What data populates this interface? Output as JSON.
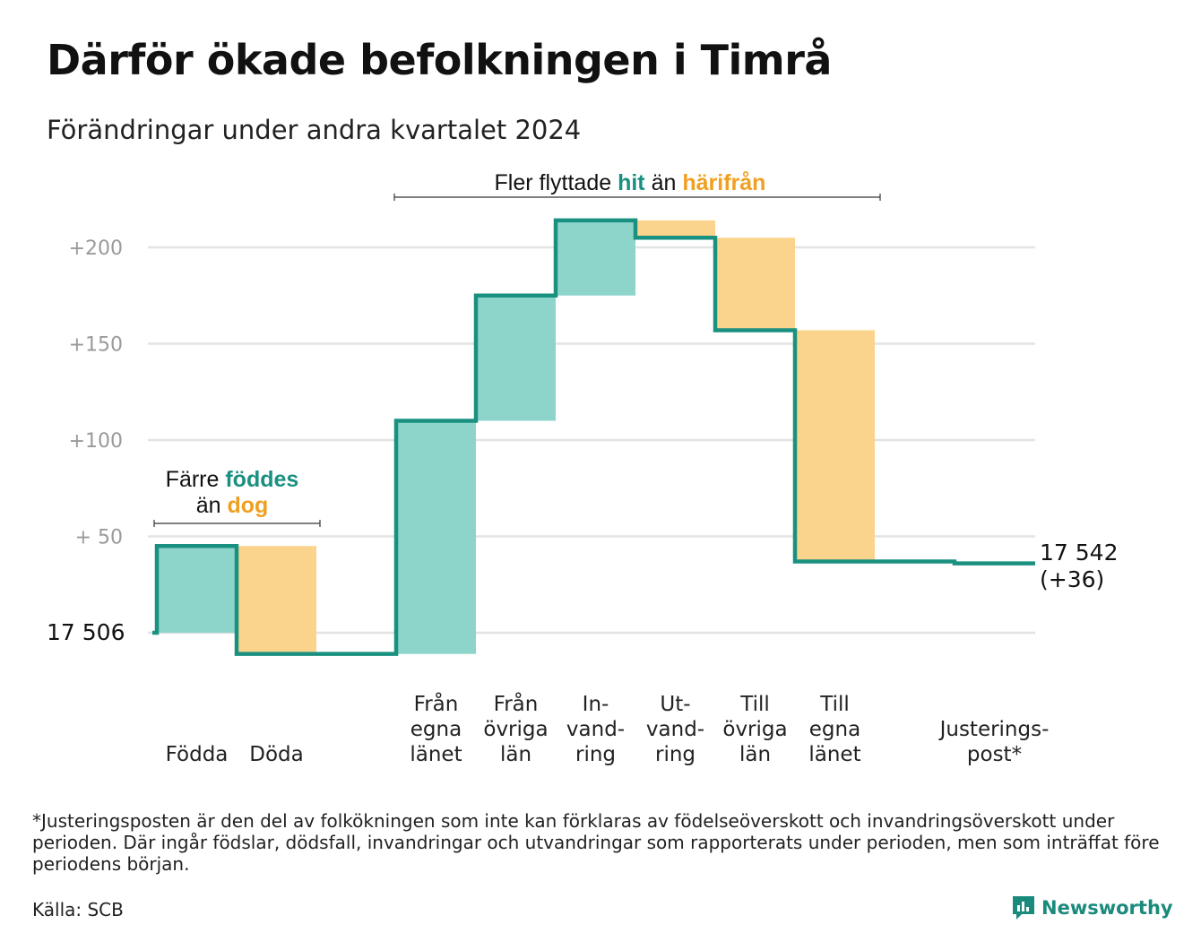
{
  "title": "Därför ökade befolkningen i Timrå",
  "subtitle": "Förändringar under andra kvartalet 2024",
  "colors": {
    "positive_bar": "#8dd5cb",
    "negative_bar": "#fad48c",
    "line": "#1a9080",
    "hit": "#1a9080",
    "harifran": "#f0a020"
  },
  "chart_data": {
    "type": "waterfall",
    "start_value": 17506,
    "start_label": "17  506",
    "end_label_value": "17 542",
    "end_label_change": "(+36)",
    "ylim": [
      -10,
      215
    ],
    "grid": true,
    "y_ticks": [
      {
        "value": 200,
        "label": "+200"
      },
      {
        "value": 150,
        "label": "+150"
      },
      {
        "value": 100,
        "label": "+100"
      },
      {
        "value": 50,
        "label": "+  50"
      }
    ],
    "steps": [
      {
        "label": [
          "Födda"
        ],
        "change": 45,
        "sign": "positive"
      },
      {
        "label": [
          "Döda"
        ],
        "change": -56,
        "sign": "negative"
      },
      {
        "label": [],
        "change": 0,
        "sign": "gap"
      },
      {
        "label": [
          "Från",
          "egna",
          "länet"
        ],
        "change": 121,
        "sign": "positive"
      },
      {
        "label": [
          "Från",
          "övriga",
          "län"
        ],
        "change": 65,
        "sign": "positive"
      },
      {
        "label": [
          "In-",
          "vand-",
          "ring"
        ],
        "change": 39,
        "sign": "positive"
      },
      {
        "label": [
          "Ut-",
          "vand-",
          "ring"
        ],
        "change": -9,
        "sign": "negative"
      },
      {
        "label": [
          "Till",
          "övriga",
          "län"
        ],
        "change": -48,
        "sign": "negative"
      },
      {
        "label": [
          "Till",
          "egna",
          "länet"
        ],
        "change": -120,
        "sign": "negative"
      },
      {
        "label": [],
        "change": 0,
        "sign": "gap"
      },
      {
        "label": [
          "Justerings-",
          "post*"
        ],
        "change": -1,
        "sign": "adjustment"
      }
    ],
    "annotations": {
      "births": {
        "line1": "Färre",
        "word1": "föddes",
        "line2": "än",
        "word2": "dog"
      },
      "migration": {
        "text1": "Fler flyttade",
        "word1": "hit",
        "text2": "än",
        "word2": "härifrån"
      }
    }
  },
  "footnote": "*Justeringsposten är den del av folkökningen som inte kan förklaras av födelseöverskott och invandringsöverskott under perioden. Där ingår födslar, dödsfall, invandringar och utvandringar som rapporterats under perioden, men som inträffat före periodens början.",
  "source": "Källa: SCB",
  "brand": {
    "name": "Newsworthy",
    "icon": "bar-chart-logo-icon"
  }
}
